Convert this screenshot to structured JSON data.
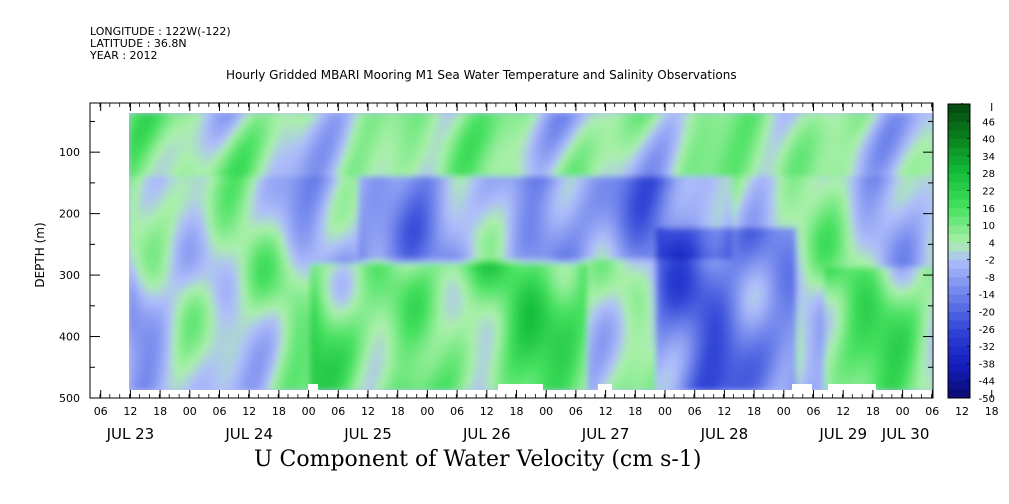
{
  "header": {
    "longitude": "LONGITUDE : 122W(-122)",
    "latitude": "LATITUDE : 36.8N",
    "year": "YEAR : 2012"
  },
  "chart_data": {
    "type": "heatmap",
    "title": "Hourly Gridded MBARI Mooring M1 Sea Water Temperature and Salinity Observations",
    "variable_title": "U Component of Water Velocity (cm s-1)",
    "ylabel": "DEPTH (m)",
    "ylim": [
      500,
      20
    ],
    "y_inverted": true,
    "y_ticks": [
      100,
      200,
      300,
      400,
      500
    ],
    "x_hour_ticks": [
      "06",
      "12",
      "18",
      "00",
      "06",
      "12",
      "18",
      "00",
      "06",
      "12",
      "18",
      "00",
      "06",
      "12",
      "18",
      "00",
      "06",
      "12",
      "18",
      "00",
      "06",
      "12",
      "18",
      "00",
      "06",
      "12",
      "18",
      "00",
      "06",
      "12",
      "18",
      "00"
    ],
    "x_day_labels": [
      "JUL 23",
      "JUL 24",
      "JUL 25",
      "JUL 26",
      "JUL 27",
      "JUL 28",
      "JUL 29",
      "JUL 30"
    ],
    "colorbar": {
      "labels": [
        "46",
        "40",
        "34",
        "28",
        "22",
        "16",
        "10",
        "4",
        "-2",
        "-8",
        "-14",
        "-20",
        "-26",
        "-32",
        "-38",
        "-44",
        "-50"
      ],
      "range": [
        -50,
        52
      ],
      "step": 3
    },
    "dominant_bands": [
      {
        "period": "JUL 23 - JUL 24",
        "depth_range": [
          20,
          480
        ],
        "sign": "alternating",
        "magnitude": "3 to 16"
      },
      {
        "period": "JUL 25 - JUL 26",
        "depth_range": [
          260,
          480
        ],
        "sign": "positive",
        "magnitude": "10 to 22"
      },
      {
        "period": "JUL 25 - JUL 27",
        "depth_range": [
          150,
          260
        ],
        "sign": "negative",
        "magnitude": "-2 to -14"
      },
      {
        "period": "JUL 28",
        "depth_range": [
          200,
          480
        ],
        "sign": "negative",
        "magnitude": "-8 to -26"
      },
      {
        "period": "JUL 29 - JUL 30",
        "depth_range": [
          280,
          480
        ],
        "sign": "positive",
        "magnitude": "4 to 16"
      }
    ]
  }
}
